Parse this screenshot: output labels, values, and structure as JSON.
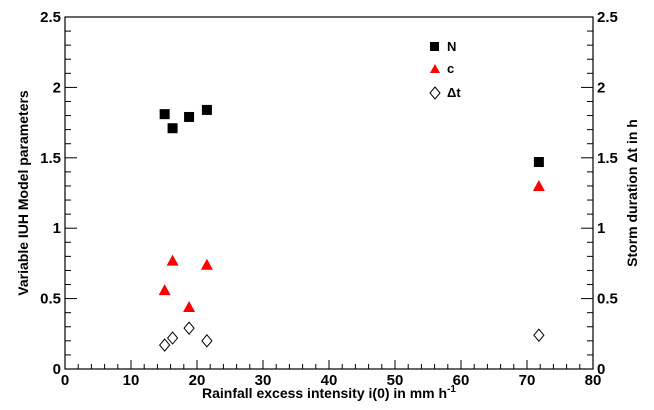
{
  "chart_data": {
    "type": "scatter",
    "xlabel": "Rainfall excess intensity i(0) in mm h",
    "xlabel_superscript": "-1",
    "ylabel_left": "Variable IUH Model parameters",
    "ylabel_right": "Storm duration Δt in h",
    "xlim": [
      0,
      80
    ],
    "ylim": [
      0,
      2.5
    ],
    "ylim_right": [
      0,
      2.5
    ],
    "x_ticks": [
      "0",
      "10",
      "20",
      "30",
      "40",
      "50",
      "60",
      "70",
      "80"
    ],
    "y_ticks": [
      "0",
      "0.5",
      "1",
      "1.5",
      "2",
      "2.5"
    ],
    "grid": false,
    "legend_position": "top-right",
    "series": [
      {
        "name": "N",
        "marker": "filled-square",
        "color": "#000000",
        "points": [
          [
            15.1,
            1.81
          ],
          [
            16.3,
            1.71
          ],
          [
            18.8,
            1.79
          ],
          [
            21.5,
            1.84
          ],
          [
            71.8,
            1.47
          ]
        ]
      },
      {
        "name": "c",
        "marker": "filled-triangle",
        "color": "#ff0000",
        "points": [
          [
            15.1,
            0.56
          ],
          [
            16.3,
            0.77
          ],
          [
            18.8,
            0.44
          ],
          [
            21.5,
            0.74
          ],
          [
            71.8,
            1.3
          ]
        ]
      },
      {
        "name": "Δt",
        "marker": "open-diamond",
        "color": "#000000",
        "points": [
          [
            15.1,
            0.17
          ],
          [
            16.3,
            0.22
          ],
          [
            18.8,
            0.29
          ],
          [
            21.5,
            0.2
          ],
          [
            71.8,
            0.24
          ]
        ]
      }
    ]
  }
}
